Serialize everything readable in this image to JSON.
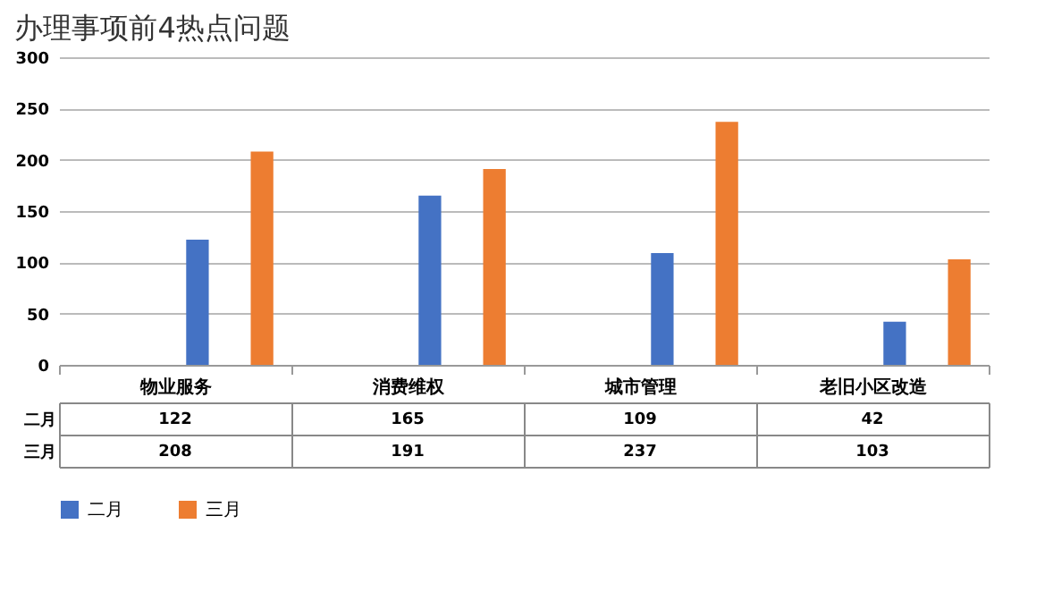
{
  "chart_data": {
    "type": "bar",
    "title": "办理事项前4热点问题",
    "categories": [
      "物业服务",
      "消费维权",
      "城市管理",
      "老旧小区改造"
    ],
    "series": [
      {
        "name": "二月",
        "color": "#4472c4",
        "values": [
          122,
          165,
          109,
          42
        ]
      },
      {
        "name": "三月",
        "color": "#ed7d31",
        "values": [
          208,
          191,
          237,
          103
        ]
      }
    ],
    "ylim": [
      0,
      300
    ],
    "yticks": [
      0,
      50,
      100,
      150,
      200,
      250,
      300
    ],
    "grid": "y",
    "legend": "bottom",
    "data_labels": true
  }
}
